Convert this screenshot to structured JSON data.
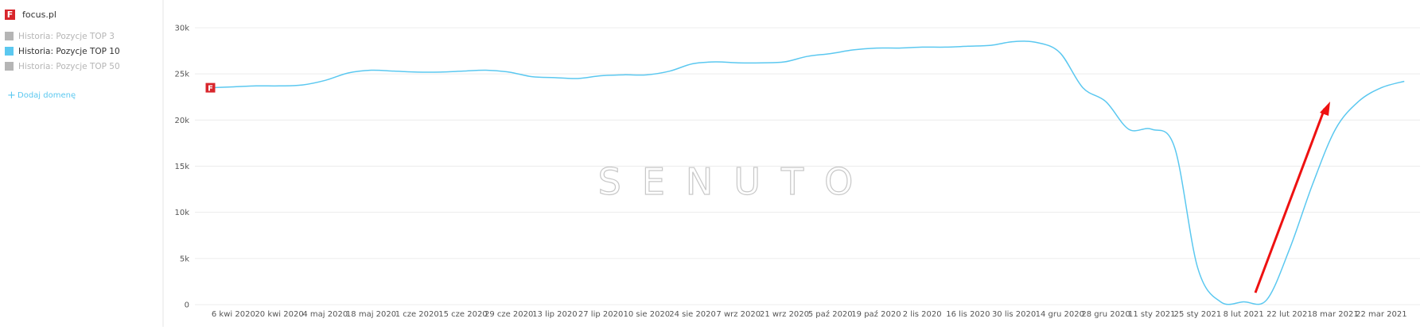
{
  "sidebar": {
    "logo_letter": "F",
    "domain": "focus.pl",
    "legend_items": [
      {
        "label": "Historia: Pozycje TOP 3",
        "color": "#b5b5b5"
      },
      {
        "label": "Historia: Pozycje TOP 50",
        "color": "#b5b5b5"
      }
    ],
    "add_domain": "Dodaj domenę"
  },
  "chart_data": {
    "type": "line",
    "watermark": "SENUTO",
    "categories": [
      null,
      "6 kwi 2020",
      null,
      "20 kwi 2020",
      null,
      "4 maj 2020",
      null,
      "18 maj 2020",
      null,
      "1 cze 2020",
      null,
      "15 cze 2020",
      null,
      "29 cze 2020",
      null,
      "13 lip 2020",
      null,
      "27 lip 2020",
      null,
      "10 sie 2020",
      null,
      "24 sie 2020",
      null,
      "7 wrz 2020",
      null,
      "21 wrz 2020",
      null,
      "5 paź 2020",
      null,
      "19 paź 2020",
      null,
      "2 lis 2020",
      null,
      "16 lis 2020",
      null,
      "30 lis 2020",
      null,
      "14 gru 2020",
      null,
      "28 gru 2020",
      null,
      "11 sty 2021",
      null,
      "25 sty 2021",
      null,
      "8 lut 2021",
      null,
      "22 lut 2021",
      null,
      "8 mar 2021",
      null,
      "22 mar 2021",
      null
    ],
    "series": [
      {
        "name": "Historia: Pozycje TOP 10",
        "color": "#5bc8f0",
        "values": [
          23500,
          23600,
          23700,
          23700,
          23800,
          24300,
          25100,
          25400,
          25300,
          25200,
          25200,
          25300,
          25400,
          25200,
          24700,
          24600,
          24500,
          24800,
          24900,
          24900,
          25300,
          26100,
          26300,
          26200,
          26200,
          26300,
          26900,
          27200,
          27600,
          27800,
          27800,
          27900,
          27900,
          28000,
          28100,
          28500,
          28400,
          27300,
          23500,
          22000,
          19000,
          19000,
          17000,
          4000,
          300,
          300,
          500,
          6000,
          13000,
          19000,
          22000,
          23500,
          24200
        ]
      }
    ],
    "ylim": [
      0,
      30000
    ],
    "yticks": [
      {
        "value": 0,
        "label": "0"
      },
      {
        "value": 5000,
        "label": "5k"
      },
      {
        "value": 10000,
        "label": "10k"
      },
      {
        "value": 15000,
        "label": "15k"
      },
      {
        "value": 20000,
        "label": "20k"
      },
      {
        "value": 25000,
        "label": "25k"
      },
      {
        "value": 30000,
        "label": "30k"
      }
    ],
    "grid": true
  }
}
